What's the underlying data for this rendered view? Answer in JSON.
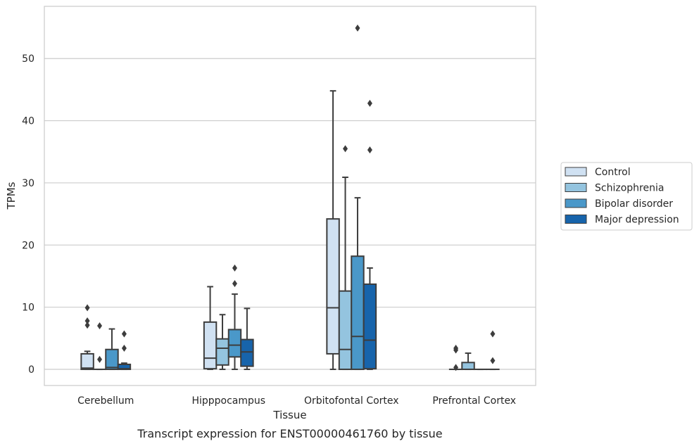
{
  "chart_data": {
    "type": "box",
    "title": "Transcript expression for ENST00000461760 by tissue",
    "xlabel": "Tissue",
    "ylabel": "TPMs",
    "ylim": [
      -2.6,
      58.4
    ],
    "yticks": [
      0,
      10,
      20,
      30,
      40,
      50
    ],
    "grid": "horizontal",
    "legend_position": "right",
    "categories": [
      "Cerebellum",
      "Hipppocampus",
      "Orbitofontal Cortex",
      "Prefrontal Cortex"
    ],
    "series": [
      {
        "name": "Control",
        "color": "#d0e1f2",
        "boxes": [
          {
            "whislo": 0,
            "q1": 0,
            "med": 0.2,
            "q3": 2.5,
            "whishi": 2.9,
            "fliers": [
              7.1,
              7.8,
              9.9
            ]
          },
          {
            "whislo": 0,
            "q1": 0.1,
            "med": 1.8,
            "q3": 7.6,
            "whishi": 13.3,
            "fliers": []
          },
          {
            "whislo": 0,
            "q1": 2.5,
            "med": 9.9,
            "q3": 24.2,
            "whishi": 44.8,
            "fliers": []
          },
          {
            "whislo": 0,
            "q1": 0,
            "med": 0,
            "q3": 0,
            "whishi": 0,
            "fliers": [
              0.3,
              3.1,
              3.4
            ]
          }
        ]
      },
      {
        "name": "Schizophrenia",
        "color": "#94c4df",
        "boxes": [
          {
            "whislo": 0,
            "q1": 0,
            "med": 0,
            "q3": 0,
            "whishi": 0,
            "fliers": [
              1.6,
              7.0
            ]
          },
          {
            "whislo": 0,
            "q1": 0.7,
            "med": 3.4,
            "q3": 4.9,
            "whishi": 8.8,
            "fliers": []
          },
          {
            "whislo": 0,
            "q1": 0,
            "med": 3.2,
            "q3": 12.6,
            "whishi": 30.9,
            "fliers": [
              35.5
            ]
          },
          {
            "whislo": 0,
            "q1": 0,
            "med": 0,
            "q3": 1.1,
            "whishi": 2.6,
            "fliers": []
          }
        ]
      },
      {
        "name": "Bipolar disorder",
        "color": "#4a98c9",
        "boxes": [
          {
            "whislo": 0,
            "q1": 0,
            "med": 0.3,
            "q3": 3.2,
            "whishi": 6.5,
            "fliers": []
          },
          {
            "whislo": 0,
            "q1": 2.0,
            "med": 3.9,
            "q3": 6.4,
            "whishi": 12.1,
            "fliers": [
              13.8,
              16.3
            ]
          },
          {
            "whislo": 0,
            "q1": 0,
            "med": 5.3,
            "q3": 18.2,
            "whishi": 27.6,
            "fliers": [
              54.9
            ]
          },
          {
            "whislo": 0,
            "q1": 0,
            "med": 0,
            "q3": 0,
            "whishi": 0,
            "fliers": []
          }
        ]
      },
      {
        "name": "Major depression",
        "color": "#1764ab",
        "boxes": [
          {
            "whislo": 0,
            "q1": 0,
            "med": 0.1,
            "q3": 0.8,
            "whishi": 1.0,
            "fliers": [
              3.4,
              5.7
            ]
          },
          {
            "whislo": 0,
            "q1": 0.5,
            "med": 2.8,
            "q3": 4.8,
            "whishi": 9.8,
            "fliers": []
          },
          {
            "whislo": 0,
            "q1": 0.1,
            "med": 4.7,
            "q3": 13.7,
            "whishi": 16.3,
            "fliers": [
              35.3,
              42.8
            ]
          },
          {
            "whislo": 0,
            "q1": 0,
            "med": 0,
            "q3": 0,
            "whishi": 0,
            "fliers": [
              1.4,
              5.7
            ]
          }
        ]
      }
    ]
  }
}
